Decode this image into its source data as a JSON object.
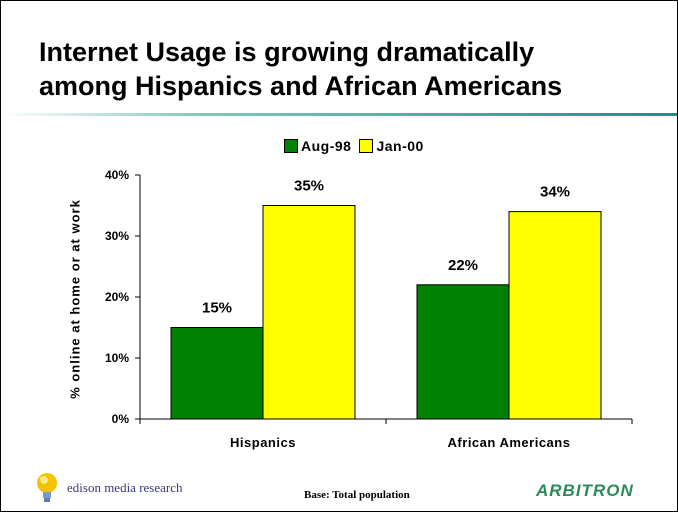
{
  "title": {
    "line1": "Internet Usage is growing dramatically",
    "line2": "among Hispanics and African Americans"
  },
  "chart_data": {
    "type": "bar",
    "categories": [
      "Hispanics",
      "African Americans"
    ],
    "series": [
      {
        "name": "Aug-98",
        "values": [
          15,
          22
        ],
        "color": "#008000"
      },
      {
        "name": "Jan-00",
        "values": [
          35,
          34
        ],
        "color": "#ffff00"
      }
    ],
    "ylabel": "% online at home or at work",
    "xlabel": "",
    "ylim": [
      0,
      40
    ],
    "yticks": [
      "0%",
      "10%",
      "20%",
      "30%",
      "40%"
    ],
    "data_labels": [
      [
        "15%",
        "22%"
      ],
      [
        "35%",
        "34%"
      ]
    ],
    "legend": "top-center",
    "grid": false
  },
  "footer": {
    "logo": "edison media research",
    "base": "Base: Total population",
    "brand": "ARBITRON"
  },
  "colors": {
    "rule_accent": "#1f8f87",
    "brand": "#2a8a5a"
  }
}
